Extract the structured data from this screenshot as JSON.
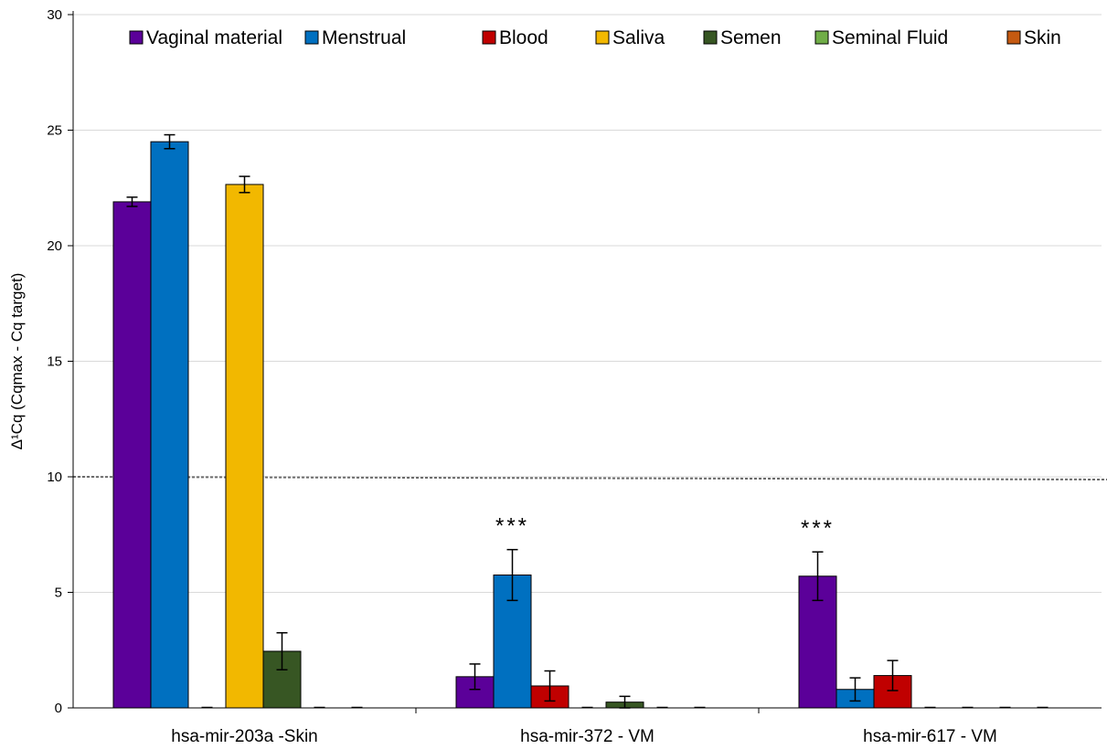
{
  "chart_data": {
    "type": "bar",
    "ylabel": "Δ¹Cq (Cqmax - Cq target)",
    "ylim": [
      0,
      30
    ],
    "yticks": [
      0,
      5,
      10,
      15,
      20,
      25,
      30
    ],
    "grid": true,
    "legend_position": "top",
    "categories": [
      "hsa-mir-203a -Skin",
      "hsa-mir-372 - VM",
      "hsa-mir-617 - VM"
    ],
    "series": [
      {
        "name": "Vaginal material",
        "color": "#5B0099",
        "values": [
          21.9,
          1.35,
          5.7
        ],
        "errors": [
          0.2,
          0.55,
          1.05
        ]
      },
      {
        "name": "Menstrual",
        "color": "#0070C0",
        "values": [
          24.5,
          5.75,
          0.8
        ],
        "errors": [
          0.3,
          1.1,
          0.5
        ]
      },
      {
        "name": "Blood",
        "color": "#C00000",
        "values": [
          0,
          0.95,
          1.4
        ],
        "errors": [
          0,
          0.65,
          0.65
        ]
      },
      {
        "name": "Saliva",
        "color": "#F2B800",
        "values": [
          22.65,
          0,
          0
        ],
        "errors": [
          0.35,
          0,
          0
        ]
      },
      {
        "name": "Semen",
        "color": "#375623",
        "values": [
          2.45,
          0.25,
          0
        ],
        "errors": [
          0.8,
          0.25,
          0
        ]
      },
      {
        "name": "Seminal Fluid",
        "color": "#70AD47",
        "values": [
          0,
          0,
          0
        ],
        "errors": [
          0,
          0,
          0
        ]
      },
      {
        "name": "Skin",
        "color": "#C55A11",
        "values": [
          0,
          0,
          0
        ],
        "errors": [
          0,
          0,
          0
        ]
      }
    ],
    "threshold": 10,
    "annotations": [
      {
        "text": "***",
        "category_index": 1,
        "series_index": 1
      },
      {
        "text": "***",
        "category_index": 2,
        "series_index": 0
      }
    ]
  }
}
